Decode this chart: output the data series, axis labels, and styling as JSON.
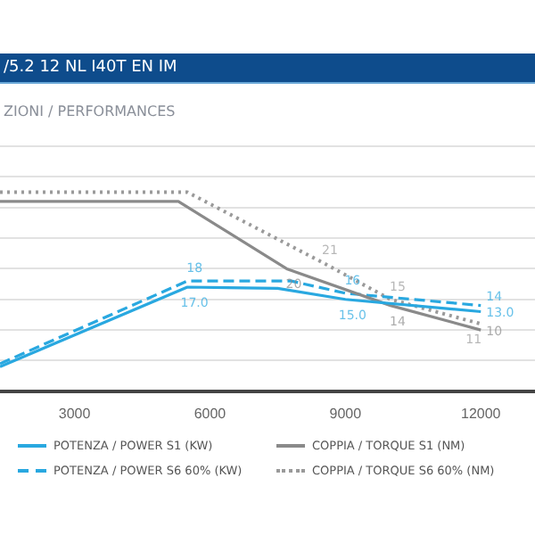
{
  "chart_data": {
    "type": "line",
    "title": "/5.2 12 NL I40T EN IM",
    "subtitle": "ZIONI / PERFORMANCES",
    "xlim": [
      1350,
      13200
    ],
    "xticks": [
      3000,
      6000,
      9000,
      12000
    ],
    "ylim": [
      0,
      40
    ],
    "yticks": [
      {
        "value": 0,
        "label": null
      },
      {
        "value": 5,
        "label": null
      },
      {
        "value": 10,
        "label": null
      },
      {
        "value": 15,
        "label": null
      },
      {
        "value": 20,
        "label": null
      },
      {
        "value": 25,
        "label": null
      },
      {
        "value": 30,
        "label": null
      },
      {
        "value": 35,
        "label": null
      },
      {
        "value": 40,
        "label": null
      }
    ],
    "grid": "y",
    "tick_labels": "x",
    "legend": "bottom",
    "marker": "none",
    "series": [
      {
        "name": "POTENZA / POWER S1 (KW)",
        "color": "#29a8e0",
        "line_style": "solid",
        "x": [
          1350,
          5500,
          7500,
          9000,
          12000
        ],
        "values": [
          4,
          17,
          16.8,
          15,
          13
        ],
        "value_labels": [
          null,
          "17.0",
          null,
          "15.0",
          "13.0"
        ]
      },
      {
        "name": "COPPIA / TORQUE S1 (NM)",
        "color": "#8a8a8a",
        "line_style": "solid",
        "x": [
          1350,
          5300,
          7700,
          10000,
          12000
        ],
        "values": [
          31,
          31,
          20,
          14,
          10
        ],
        "value_labels": [
          null,
          null,
          "20",
          "14",
          "10"
        ]
      },
      {
        "name": "POTENZA / POWER S6 60% (KW)",
        "color": "#29a8e0",
        "line_style": "dashed",
        "x": [
          1350,
          5500,
          7800,
          9000,
          12000
        ],
        "values": [
          4.5,
          18,
          18,
          16,
          14
        ],
        "value_labels": [
          null,
          "18",
          null,
          "16",
          "14"
        ]
      },
      {
        "name": "COPPIA / TORQUE S6 60% (NM)",
        "color": "#9a9a9a",
        "line_style": "dotted",
        "x": [
          1350,
          5500,
          8500,
          10000,
          12000
        ],
        "values": [
          32.5,
          32.5,
          21,
          15,
          11
        ],
        "value_labels": [
          null,
          null,
          "21",
          "15",
          "11"
        ]
      }
    ]
  }
}
